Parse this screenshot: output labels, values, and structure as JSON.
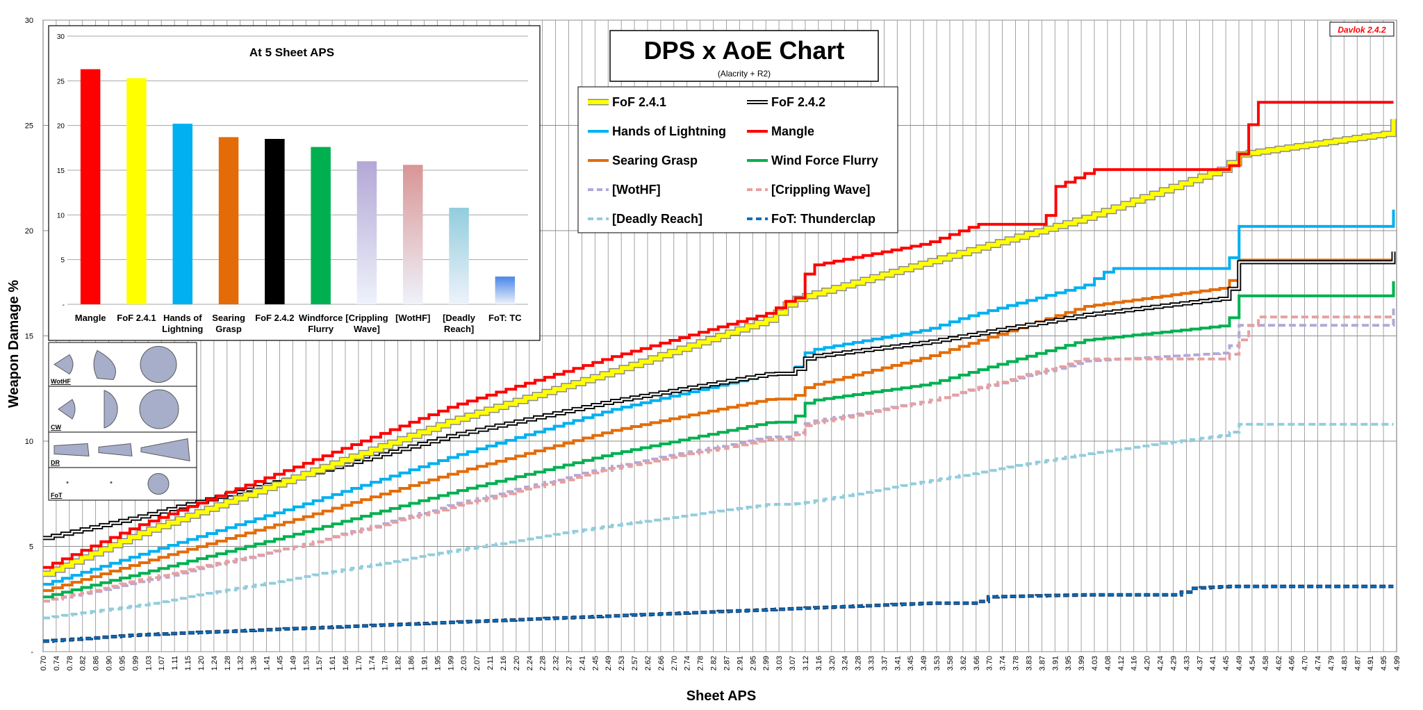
{
  "version_tag": "Davlok 2.4.2",
  "chart_data": [
    {
      "type": "line",
      "title": "DPS x AoE Chart",
      "subtitle": "(Alacrity + R2)",
      "xlabel": "Sheet APS",
      "ylabel": "Weapon Damage %",
      "xlim": [
        0.7,
        4.99
      ],
      "ylim": [
        0,
        30
      ],
      "y_tick_labels": [
        "-",
        "5",
        "10",
        "15",
        "20",
        "25",
        "30"
      ],
      "x_tick_labels": [
        "0.70",
        "0.74",
        "0.78",
        "0.82",
        "0.86",
        "0.90",
        "0.95",
        "0.99",
        "1.03",
        "1.07",
        "1.11",
        "1.15",
        "1.20",
        "1.24",
        "1.28",
        "1.32",
        "1.36",
        "1.41",
        "1.45",
        "1.49",
        "1.53",
        "1.57",
        "1.61",
        "1.66",
        "1.70",
        "1.74",
        "1.78",
        "1.82",
        "1.86",
        "1.91",
        "1.95",
        "1.99",
        "2.03",
        "2.07",
        "2.11",
        "2.16",
        "2.20",
        "2.24",
        "2.28",
        "2.32",
        "2.37",
        "2.41",
        "2.45",
        "2.49",
        "2.53",
        "2.57",
        "2.62",
        "2.66",
        "2.70",
        "2.74",
        "2.78",
        "2.82",
        "2.87",
        "2.91",
        "2.95",
        "2.99",
        "3.03",
        "3.07",
        "3.12",
        "3.16",
        "3.20",
        "3.24",
        "3.28",
        "3.33",
        "3.37",
        "3.41",
        "3.45",
        "3.49",
        "3.53",
        "3.58",
        "3.62",
        "3.66",
        "3.70",
        "3.74",
        "3.78",
        "3.83",
        "3.87",
        "3.91",
        "3.95",
        "3.99",
        "4.03",
        "4.08",
        "4.12",
        "4.16",
        "4.20",
        "4.24",
        "4.29",
        "4.33",
        "4.37",
        "4.41",
        "4.45",
        "4.49",
        "4.54",
        "4.58",
        "4.62",
        "4.66",
        "4.70",
        "4.74",
        "4.79",
        "4.83",
        "4.87",
        "4.91",
        "4.95",
        "4.99"
      ],
      "grid": true,
      "legend_position": "top-center",
      "series": [
        {
          "name": "FoF 2.4.1",
          "color": "#ffff00",
          "style": "solid-outlined",
          "x": [
            0.7,
            1.0,
            1.5,
            2.0,
            2.5,
            3.0,
            3.07,
            3.5,
            4.0,
            4.45,
            4.48,
            4.95,
            4.98
          ],
          "y": [
            3.7,
            5.6,
            8.3,
            11.0,
            13.3,
            15.8,
            16.7,
            18.5,
            20.6,
            23.0,
            23.6,
            24.6,
            25.3
          ]
        },
        {
          "name": "FoF 2.4.2",
          "color": "#000000",
          "style": "double",
          "x": [
            0.7,
            1.0,
            1.5,
            2.0,
            2.5,
            3.0,
            3.07,
            3.12,
            3.5,
            4.0,
            4.45,
            4.49,
            4.95,
            4.98
          ],
          "y": [
            5.4,
            6.4,
            8.3,
            10.3,
            11.9,
            13.2,
            13.2,
            14.0,
            14.7,
            16.0,
            16.8,
            18.5,
            18.5,
            19.0
          ]
        },
        {
          "name": "Hands of Lightning",
          "color": "#00b0f0",
          "style": "solid",
          "x": [
            0.7,
            1.0,
            1.5,
            2.0,
            2.5,
            3.0,
            3.07,
            3.12,
            3.5,
            3.62,
            4.0,
            4.08,
            4.45,
            4.49,
            4.95,
            4.98
          ],
          "y": [
            3.2,
            4.6,
            6.9,
            9.3,
            11.5,
            13.2,
            13.2,
            14.3,
            15.3,
            15.9,
            17.4,
            18.2,
            18.2,
            20.2,
            20.2,
            21.0
          ]
        },
        {
          "name": "Mangle",
          "color": "#ff0000",
          "style": "solid",
          "x": [
            0.7,
            1.0,
            1.5,
            2.0,
            2.5,
            3.0,
            3.07,
            3.1,
            3.12,
            3.5,
            3.66,
            3.87,
            3.91,
            4.03,
            4.45,
            4.5,
            4.54,
            4.98
          ],
          "y": [
            4.0,
            6.0,
            8.8,
            11.7,
            14.0,
            16.1,
            16.8,
            16.8,
            18.3,
            19.4,
            20.3,
            20.3,
            22.1,
            22.9,
            22.9,
            23.8,
            26.1,
            26.1
          ]
        },
        {
          "name": "Searing Grasp",
          "color": "#e36c09",
          "style": "solid",
          "x": [
            0.7,
            1.0,
            1.5,
            2.0,
            2.5,
            3.0,
            3.07,
            3.12,
            3.5,
            4.0,
            4.45,
            4.49,
            4.95,
            4.98
          ],
          "y": [
            2.9,
            4.2,
            6.3,
            8.5,
            10.5,
            12.0,
            12.0,
            12.6,
            14.0,
            16.4,
            17.3,
            18.6,
            18.6,
            18.6
          ]
        },
        {
          "name": "Wind Force Flurry",
          "color": "#00b050",
          "style": "solid",
          "x": [
            0.7,
            1.0,
            1.5,
            2.0,
            2.5,
            3.0,
            3.07,
            3.12,
            3.5,
            4.0,
            4.45,
            4.49,
            4.95,
            4.98
          ],
          "y": [
            2.6,
            3.7,
            5.6,
            7.6,
            9.4,
            10.9,
            10.9,
            11.9,
            12.7,
            14.8,
            15.5,
            16.9,
            16.9,
            17.6
          ]
        },
        {
          "name": "[WotHF]",
          "color": "#b4a7d6",
          "style": "dashed",
          "x": [
            0.7,
            1.0,
            1.5,
            2.0,
            2.5,
            3.0,
            3.07,
            3.12,
            3.5,
            4.0,
            4.45,
            4.49,
            4.95,
            4.98
          ],
          "y": [
            2.4,
            3.3,
            5.0,
            7.0,
            8.8,
            10.2,
            10.2,
            10.9,
            11.9,
            13.8,
            14.2,
            15.5,
            15.5,
            16.3
          ]
        },
        {
          "name": "[Crippling Wave]",
          "color": "#e6a0a0",
          "style": "dashed",
          "x": [
            0.7,
            1.0,
            1.5,
            2.0,
            2.5,
            3.0,
            3.07,
            3.12,
            3.5,
            4.0,
            4.45,
            4.54,
            4.95,
            4.98
          ],
          "y": [
            2.4,
            3.4,
            5.0,
            6.9,
            8.7,
            10.1,
            10.1,
            10.8,
            11.9,
            13.9,
            13.9,
            15.9,
            15.9,
            15.9
          ]
        },
        {
          "name": "[Deadly Reach]",
          "color": "#92cddc",
          "style": "dashed",
          "x": [
            0.7,
            1.0,
            1.5,
            2.0,
            2.5,
            3.0,
            3.07,
            3.12,
            3.5,
            4.0,
            4.45,
            4.49,
            4.95,
            4.98
          ],
          "y": [
            1.6,
            2.2,
            3.5,
            4.8,
            6.0,
            7.0,
            7.0,
            7.1,
            8.1,
            9.4,
            10.3,
            10.8,
            10.8,
            10.8
          ]
        },
        {
          "name": "FoT: Thunderclap",
          "color": "#0070c0",
          "style": "dashed-outlined",
          "x": [
            0.7,
            1.0,
            1.5,
            2.0,
            2.5,
            3.0,
            3.5,
            3.66,
            3.68,
            4.0,
            4.29,
            4.33,
            4.45,
            4.98
          ],
          "y": [
            0.5,
            0.8,
            1.1,
            1.4,
            1.7,
            2.0,
            2.3,
            2.3,
            2.6,
            2.7,
            2.7,
            3.0,
            3.1,
            3.1
          ]
        }
      ]
    },
    {
      "type": "bar",
      "title": "At 5 Sheet APS",
      "ylim": [
        0,
        30
      ],
      "y_tick_labels": [
        "-",
        "5",
        "10",
        "15",
        "20",
        "25",
        "30"
      ],
      "categories": [
        "Mangle",
        "FoF 2.4.1",
        "Hands of Lightning",
        "Searing Grasp",
        "FoF 2.4.2",
        "Windforce Flurry",
        "[Crippling Wave]",
        "[WotHF]",
        "[Deadly Reach]",
        "FoT: TC"
      ],
      "category_lines": [
        [
          "Mangle"
        ],
        [
          "FoF 2.4.1"
        ],
        [
          "Hands of",
          "Lightning"
        ],
        [
          "Searing",
          "Grasp"
        ],
        [
          "FoF 2.4.2"
        ],
        [
          "Windforce",
          "Flurry"
        ],
        [
          "[Crippling",
          "Wave]"
        ],
        [
          "[WotHF]"
        ],
        [
          "[Deadly",
          "Reach]"
        ],
        [
          "FoT: TC"
        ]
      ],
      "values": [
        26.3,
        25.3,
        20.2,
        18.7,
        18.5,
        17.6,
        16.0,
        15.6,
        10.8,
        3.1
      ],
      "colors": [
        "#ff0000",
        "#ffff00",
        "#00b0f0",
        "#e36c09",
        "#000000",
        "#00b050",
        "#b4a7d6",
        "#d99594",
        "#92cddc",
        "#4a86e8"
      ]
    }
  ],
  "aoe_shapes": {
    "rows": [
      {
        "label": "WotHF",
        "shapes": [
          "small-cone",
          "medium-cone",
          "circle"
        ]
      },
      {
        "label": "CW",
        "shapes": [
          "small-cone",
          "half-disc",
          "circle"
        ]
      },
      {
        "label": "DR",
        "shapes": [
          "short-beam",
          "beam",
          "wedge"
        ]
      },
      {
        "label": "FoT",
        "shapes": [
          "dot",
          "dot",
          "small-circle"
        ]
      }
    ]
  }
}
